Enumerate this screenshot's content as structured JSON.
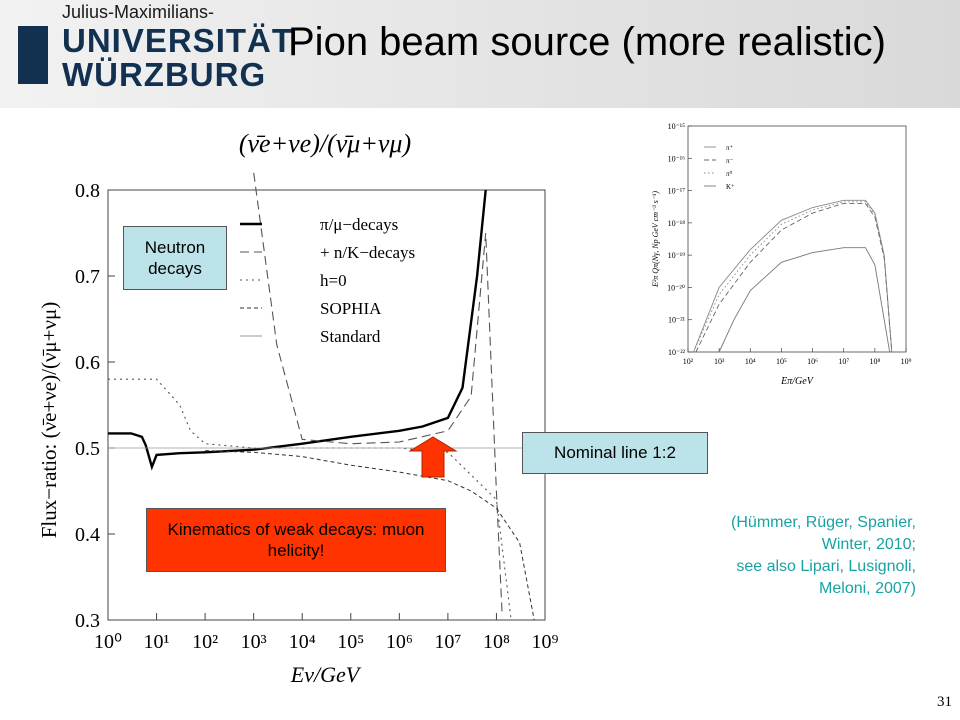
{
  "header": {
    "logo_line1": "Julius-Maximilians-",
    "logo_line2": "UNIVERSITÄT",
    "logo_line3": "WÜRZBURG",
    "title": "Pion beam source (more realistic)"
  },
  "main_plot": {
    "formula": "(ν̄e+νe)/(ν̄μ+νμ)",
    "ylabel": "Flux−ratio: (ν̄e+νe)/(ν̄μ+νμ)",
    "xlabel": "Eν/GeV",
    "x_tick_labels": [
      "10⁰",
      "10¹",
      "10²",
      "10³",
      "10⁴",
      "10⁵",
      "10⁶",
      "10⁷",
      "10⁸",
      "10⁹"
    ],
    "y_tick_labels": [
      "0.3",
      "0.4",
      "0.5",
      "0.6",
      "0.7",
      "0.8"
    ],
    "legend": [
      "π/μ−decays",
      "+ n/K−decays",
      "h=0",
      "SOPHIA",
      "Standard"
    ]
  },
  "annotations": {
    "neutron_decays": "Neutron decays",
    "kinematics": "Kinematics of weak decays: muon helicity!",
    "nominal_line": "Nominal line 1:2",
    "citation": [
      "(Hümmer, Rüger, Spanier,",
      "Winter, 2010;",
      "see also Lipari, Lusignoli,",
      "Meloni, 2007)"
    ]
  },
  "inset_plot": {
    "ylabel": "E²π Qπ(Nγ, Np GeV cm⁻³ s⁻¹)",
    "xlabel": "Eπ/GeV",
    "y_tick_labels": [
      "10⁻¹⁵",
      "10⁻¹⁶",
      "10⁻¹⁷",
      "10⁻¹⁸",
      "10⁻¹⁹",
      "10⁻²⁰",
      "10⁻²¹",
      "10⁻²²"
    ],
    "x_tick_labels": [
      "10²",
      "10³",
      "10⁴",
      "10⁵",
      "10⁶",
      "10⁷",
      "10⁸",
      "10⁹"
    ],
    "legend": [
      "π⁺",
      "π⁻",
      "π⁰",
      "K⁺"
    ]
  },
  "page_number": "31",
  "colors": {
    "accent_box": "#ff3300",
    "label_box": "#bde3ea",
    "citation": "#1aa2a2",
    "logo": "#12304f"
  },
  "chart_data": [
    {
      "type": "line",
      "title": "(ν̄e+νe)/(ν̄μ+νμ)",
      "xlabel": "Eν/GeV",
      "ylabel": "Flux−ratio: (ν̄e+νe)/(ν̄μ+νμ)",
      "x_scale": "log",
      "xlim": [
        1,
        1000000000
      ],
      "ylim": [
        0.3,
        0.8
      ],
      "legend_position": "top-right",
      "reference_line": 0.5,
      "series": [
        {
          "name": "π/μ−decays",
          "x": [
            1,
            3,
            5,
            6,
            8,
            10,
            30,
            100,
            1000,
            10000,
            100000,
            1000000,
            3000000,
            10000000,
            20000000,
            40000000,
            60000000
          ],
          "y": [
            0.517,
            0.517,
            0.513,
            0.503,
            0.478,
            0.492,
            0.494,
            0.495,
            0.498,
            0.505,
            0.513,
            0.52,
            0.525,
            0.535,
            0.57,
            0.7,
            0.8
          ]
        },
        {
          "name": "+ n/K−decays",
          "x": [
            1000,
            3000,
            10000,
            100000,
            1000000,
            10000000,
            30000000,
            60000000,
            100000000,
            130000000
          ],
          "y": [
            0.82,
            0.62,
            0.51,
            0.505,
            0.507,
            0.52,
            0.56,
            0.75,
            0.45,
            0.31
          ]
        },
        {
          "name": "h=0",
          "x": [
            1,
            10,
            30,
            50,
            100,
            1000,
            10000,
            100000,
            1000000,
            10000000,
            100000000,
            200000000
          ],
          "y": [
            0.58,
            0.58,
            0.55,
            0.52,
            0.505,
            0.5,
            0.5,
            0.5,
            0.5,
            0.495,
            0.44,
            0.3
          ]
        },
        {
          "name": "SOPHIA",
          "x": [
            100,
            1000,
            10000,
            100000,
            1000000,
            10000000,
            30000000,
            100000000,
            300000000,
            600000000
          ],
          "y": [
            0.497,
            0.495,
            0.49,
            0.48,
            0.472,
            0.462,
            0.45,
            0.43,
            0.39,
            0.3
          ]
        },
        {
          "name": "Standard",
          "x": [
            1,
            1000000000
          ],
          "y": [
            0.5,
            0.5
          ]
        }
      ]
    },
    {
      "type": "line",
      "xlabel": "Eπ/GeV",
      "ylabel": "E²π Qπ(Nγ, Np GeV cm⁻³ s⁻¹)",
      "x_scale": "log",
      "y_scale": "log",
      "xlim": [
        100,
        1000000000
      ],
      "ylim": [
        1e-22,
        1e-15
      ],
      "legend_position": "top-left",
      "series": [
        {
          "name": "π⁺",
          "x": [
            150,
            1000,
            10000,
            100000,
            1000000,
            10000000,
            50000000,
            100000000,
            200000000,
            350000000
          ],
          "y": [
            1e-22,
            1e-20,
            1.5e-19,
            1.2e-18,
            3e-18,
            5e-18,
            5e-18,
            2e-18,
            1e-19,
            1e-22
          ]
        },
        {
          "name": "π⁻",
          "x": [
            180,
            1000,
            10000,
            100000,
            1000000,
            10000000,
            50000000,
            100000000,
            200000000,
            350000000
          ],
          "y": [
            1e-22,
            3e-21,
            6e-20,
            6e-19,
            2e-18,
            4e-18,
            4e-18,
            1.5e-18,
            8e-20,
            1e-22
          ]
        },
        {
          "name": "π⁰",
          "x": [
            150,
            1000,
            10000,
            100000,
            1000000,
            10000000,
            50000000,
            100000000,
            200000000,
            350000000
          ],
          "y": [
            1e-22,
            6e-21,
            1e-19,
            9e-19,
            2.5e-18,
            4.5e-18,
            4.5e-18,
            1.8e-18,
            9e-20,
            1e-22
          ]
        },
        {
          "name": "K⁺",
          "x": [
            1000,
            3000,
            10000,
            100000,
            1000000,
            10000000,
            50000000,
            100000000,
            200000000,
            300000000
          ],
          "y": [
            1e-22,
            1e-21,
            8e-21,
            6e-20,
            1.2e-19,
            1.7e-19,
            1.7e-19,
            5e-20,
            1e-21,
            1e-22
          ]
        }
      ]
    }
  ]
}
